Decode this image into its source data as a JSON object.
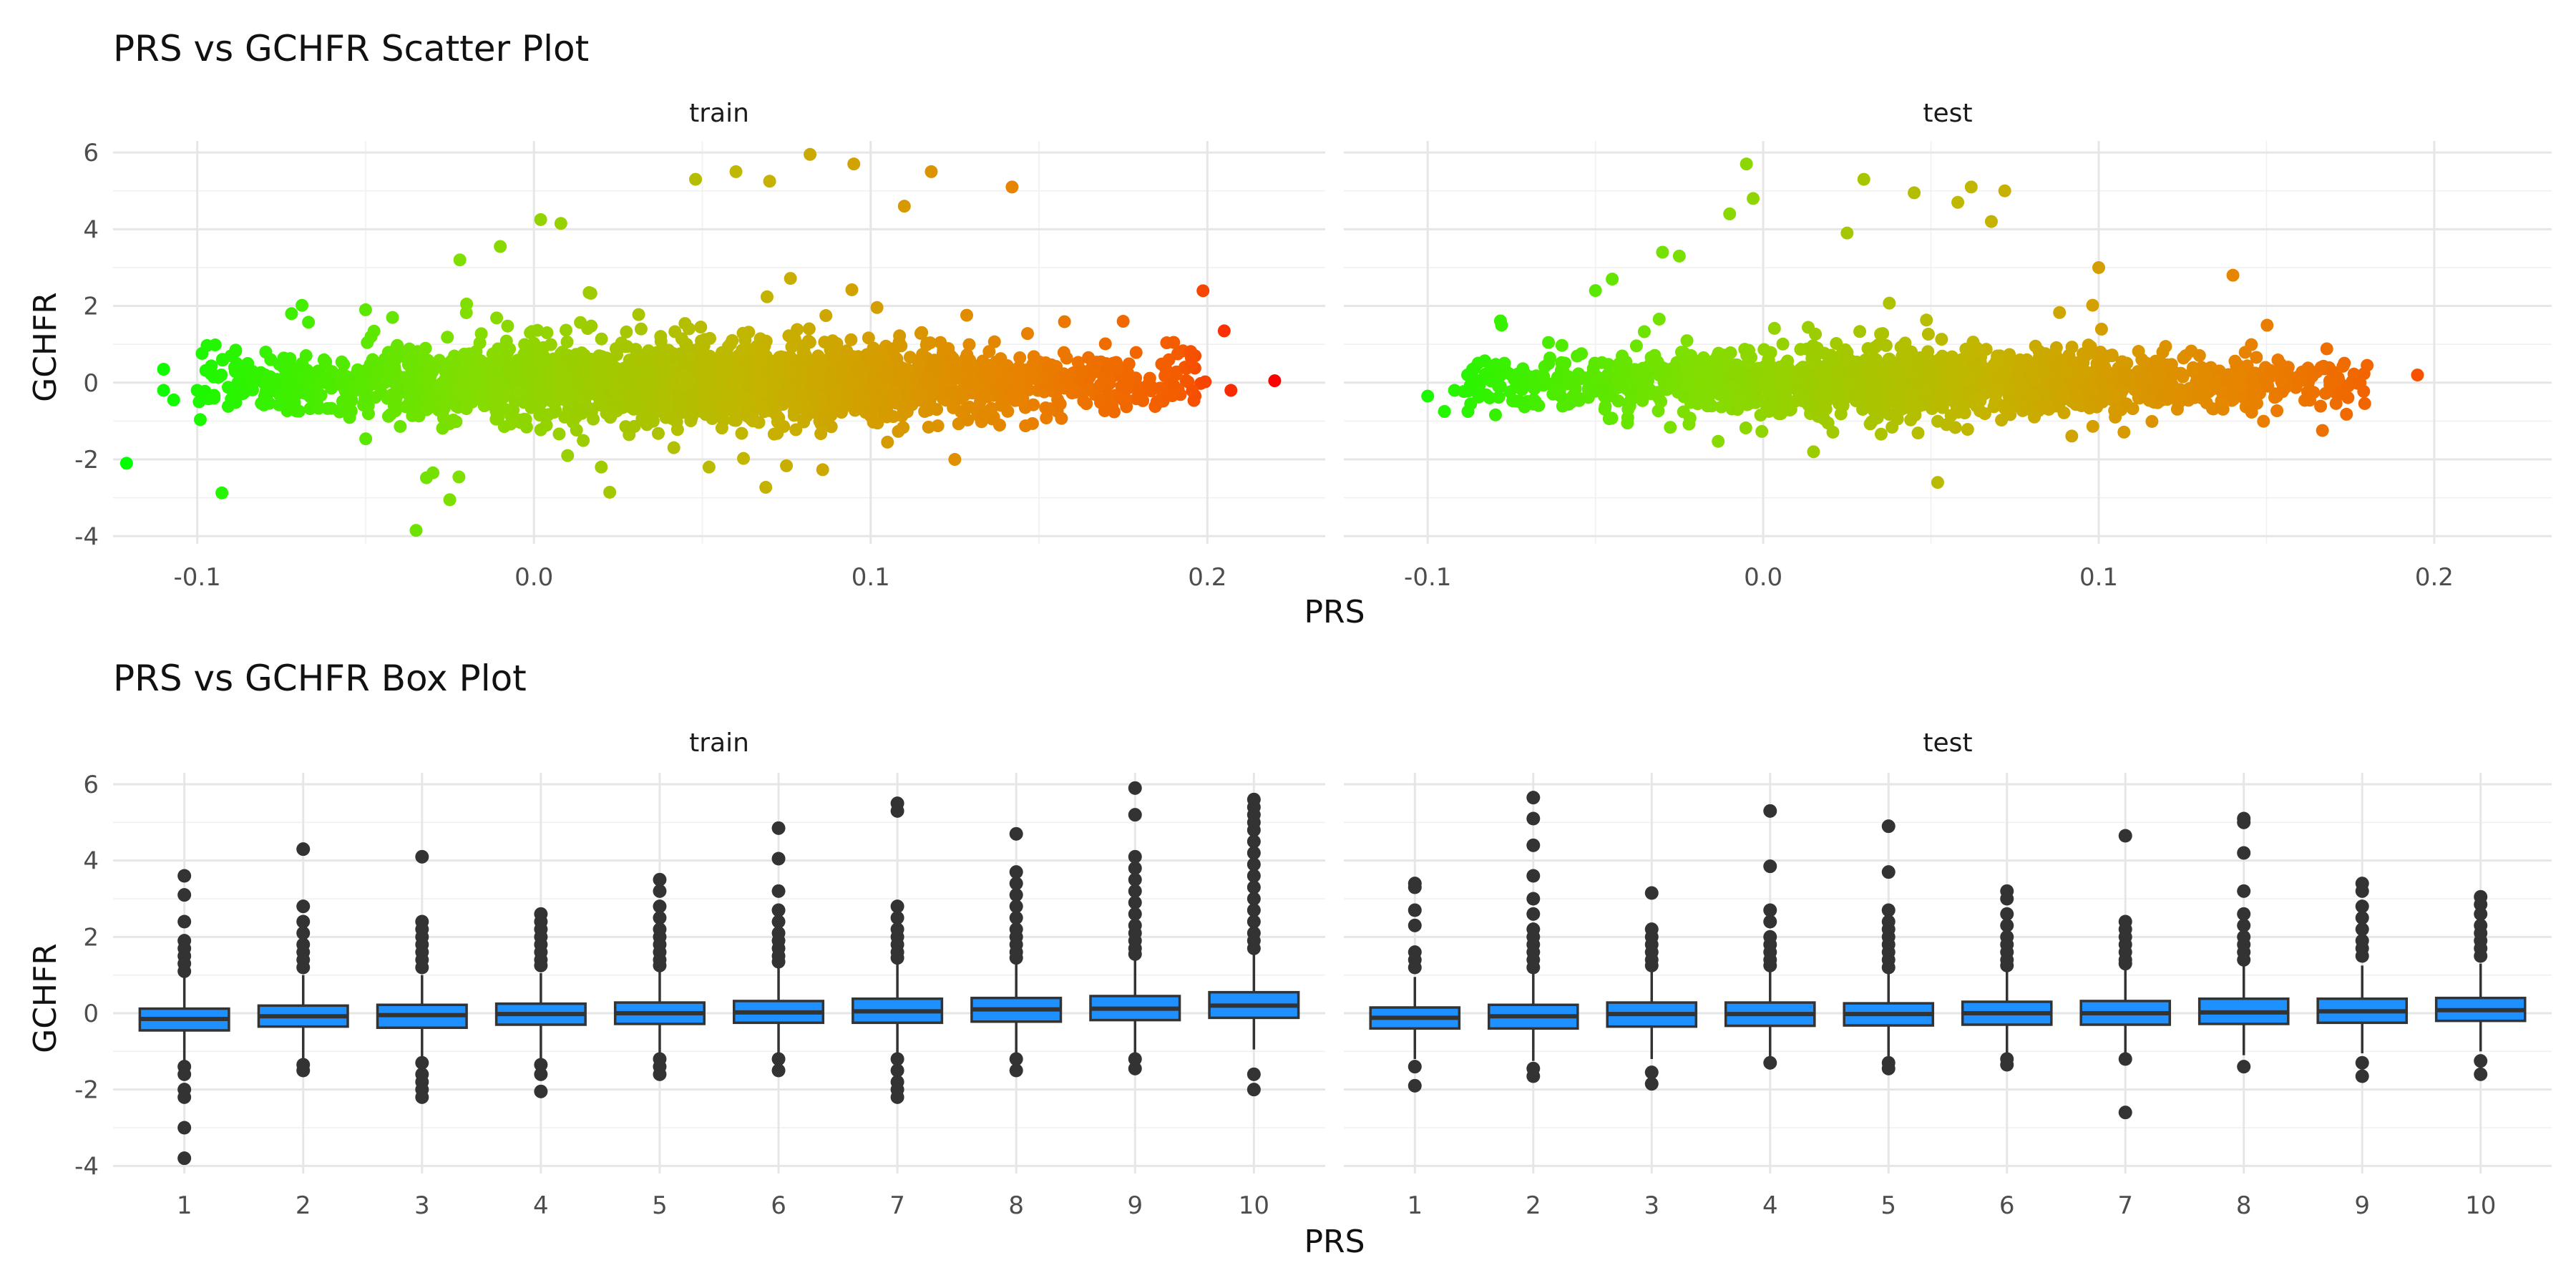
{
  "chart_data": [
    {
      "type": "scatter",
      "title": "PRS vs GCHFR Scatter Plot",
      "xlabel": "PRS",
      "ylabel": "GCHFR",
      "xlim": [
        -0.125,
        0.235
      ],
      "ylim": [
        -4.2,
        6.3
      ],
      "x_ticks": [
        -0.1,
        0.0,
        0.1,
        0.2
      ],
      "x_tick_labels": [
        "-0.1",
        "0.0",
        "0.1",
        "0.2"
      ],
      "y_ticks": [
        -4,
        -2,
        0,
        2,
        4,
        6
      ],
      "y_tick_labels": [
        "-4",
        "-2",
        "0",
        "2",
        "4",
        "6"
      ],
      "grid": true,
      "legend": "none",
      "color_gradient": {
        "low": "#00ff00",
        "high": "#ff0000",
        "by": "PRS"
      },
      "facets": [
        {
          "label": "train",
          "points": [
            [
              -0.121,
              -2.1
            ],
            [
              -0.11,
              0.35
            ],
            [
              -0.11,
              -0.2
            ],
            [
              -0.107,
              -0.45
            ],
            [
              -0.1,
              -0.2
            ],
            [
              -0.095,
              -0.4
            ],
            [
              -0.09,
              0.7
            ],
            [
              -0.085,
              0.5
            ],
            [
              -0.072,
              1.8
            ],
            [
              -0.05,
              1.9
            ],
            [
              -0.042,
              1.7
            ],
            [
              -0.03,
              -2.35
            ],
            [
              -0.025,
              -3.05
            ],
            [
              -0.035,
              -3.85
            ],
            [
              -0.02,
              2.05
            ],
            [
              -0.022,
              3.2
            ],
            [
              -0.01,
              3.55
            ],
            [
              0.002,
              4.25
            ],
            [
              0.008,
              4.15
            ],
            [
              0.01,
              -1.9
            ],
            [
              0.02,
              -2.2
            ],
            [
              0.048,
              5.3
            ],
            [
              0.052,
              -2.2
            ],
            [
              0.06,
              5.5
            ],
            [
              0.07,
              5.25
            ],
            [
              0.082,
              5.95
            ],
            [
              0.095,
              5.7
            ],
            [
              0.11,
              4.6
            ],
            [
              0.118,
              5.5
            ],
            [
              0.142,
              5.1
            ],
            [
              0.105,
              -1.55
            ],
            [
              0.125,
              -2.0
            ],
            [
              0.19,
              1.05
            ],
            [
              0.205,
              1.35
            ],
            [
              0.207,
              -0.2
            ],
            [
              0.22,
              0.05
            ],
            [
              0.175,
              1.6
            ],
            [
              0.185,
              -0.5
            ]
          ],
          "cloud": {
            "x_range": [
              -0.09,
              0.19
            ],
            "y_center": 0.0,
            "y_spread": 1.2
          }
        },
        {
          "label": "test",
          "points": [
            [
              -0.1,
              -0.35
            ],
            [
              -0.095,
              -0.75
            ],
            [
              -0.088,
              -0.75
            ],
            [
              -0.092,
              -0.2
            ],
            [
              -0.078,
              1.5
            ],
            [
              -0.05,
              2.4
            ],
            [
              -0.045,
              2.7
            ],
            [
              -0.03,
              3.4
            ],
            [
              -0.025,
              3.3
            ],
            [
              -0.01,
              4.4
            ],
            [
              -0.005,
              5.7
            ],
            [
              -0.003,
              4.8
            ],
            [
              0.015,
              -1.8
            ],
            [
              0.025,
              3.9
            ],
            [
              0.03,
              5.3
            ],
            [
              0.045,
              4.95
            ],
            [
              0.052,
              -2.6
            ],
            [
              0.058,
              4.7
            ],
            [
              0.062,
              5.1
            ],
            [
              0.068,
              4.2
            ],
            [
              0.072,
              5.0
            ],
            [
              0.1,
              3.0
            ],
            [
              0.14,
              2.8
            ],
            [
              0.18,
              0.45
            ],
            [
              0.195,
              0.2
            ],
            [
              0.172,
              -0.3
            ]
          ],
          "cloud": {
            "x_range": [
              -0.08,
              0.17
            ],
            "y_center": 0.0,
            "y_spread": 1.0
          }
        }
      ]
    },
    {
      "type": "box",
      "title": "PRS vs GCHFR Box Plot",
      "xlabel": "PRS",
      "ylabel": "GCHFR",
      "categories": [
        "1",
        "2",
        "3",
        "4",
        "5",
        "6",
        "7",
        "8",
        "9",
        "10"
      ],
      "ylim": [
        -4.2,
        6.3
      ],
      "y_ticks": [
        -4,
        -2,
        0,
        2,
        4,
        6
      ],
      "y_tick_labels": [
        "-4",
        "-2",
        "0",
        "2",
        "4",
        "6"
      ],
      "fill_color": "#1e90ff",
      "grid": true,
      "facets": [
        {
          "label": "train",
          "boxes": [
            {
              "q1": -0.45,
              "median": -0.15,
              "q3": 0.12,
              "whisker_low": -1.25,
              "whisker_high": 0.95,
              "outliers": [
                3.6,
                3.1,
                2.4,
                1.9,
                1.7,
                1.5,
                1.3,
                1.1,
                -1.4,
                -1.6,
                -2.0,
                -2.2,
                -3.0,
                -3.8
              ]
            },
            {
              "q1": -0.35,
              "median": -0.08,
              "q3": 0.2,
              "whisker_low": -1.2,
              "whisker_high": 1.0,
              "outliers": [
                4.3,
                2.8,
                2.4,
                2.1,
                1.8,
                1.6,
                1.4,
                1.2,
                -1.35,
                -1.5
              ]
            },
            {
              "q1": -0.38,
              "median": -0.05,
              "q3": 0.22,
              "whisker_low": -1.2,
              "whisker_high": 1.0,
              "outliers": [
                4.1,
                2.4,
                2.2,
                2.0,
                1.8,
                1.6,
                1.4,
                1.2,
                -1.3,
                -1.6,
                -1.8,
                -2.0,
                -2.2
              ]
            },
            {
              "q1": -0.3,
              "median": -0.02,
              "q3": 0.25,
              "whisker_low": -1.2,
              "whisker_high": 1.05,
              "outliers": [
                2.6,
                2.4,
                2.2,
                2.0,
                1.8,
                1.6,
                1.4,
                1.25,
                -1.35,
                -1.6,
                -2.05
              ]
            },
            {
              "q1": -0.28,
              "median": 0.0,
              "q3": 0.28,
              "whisker_low": -1.1,
              "whisker_high": 1.1,
              "outliers": [
                3.5,
                3.2,
                2.8,
                2.5,
                2.2,
                2.0,
                1.8,
                1.6,
                1.4,
                1.25,
                -1.2,
                -1.4,
                -1.6
              ]
            },
            {
              "q1": -0.25,
              "median": 0.02,
              "q3": 0.32,
              "whisker_low": -1.1,
              "whisker_high": 1.2,
              "outliers": [
                4.85,
                4.05,
                3.2,
                2.7,
                2.4,
                2.1,
                1.9,
                1.7,
                1.5,
                1.35,
                -1.2,
                -1.5
              ]
            },
            {
              "q1": -0.25,
              "median": 0.05,
              "q3": 0.38,
              "whisker_low": -1.1,
              "whisker_high": 1.3,
              "outliers": [
                5.5,
                5.3,
                2.8,
                2.5,
                2.2,
                2.0,
                1.8,
                1.6,
                1.45,
                -1.2,
                -1.5,
                -1.8,
                -2.0,
                -2.2
              ]
            },
            {
              "q1": -0.22,
              "median": 0.1,
              "q3": 0.4,
              "whisker_low": -1.1,
              "whisker_high": 1.3,
              "outliers": [
                4.7,
                3.7,
                3.4,
                3.1,
                2.8,
                2.5,
                2.2,
                2.0,
                1.8,
                1.6,
                1.45,
                -1.2,
                -1.5
              ]
            },
            {
              "q1": -0.18,
              "median": 0.12,
              "q3": 0.45,
              "whisker_low": -1.05,
              "whisker_high": 1.4,
              "outliers": [
                5.9,
                5.2,
                4.1,
                3.8,
                3.5,
                3.2,
                2.9,
                2.6,
                2.3,
                2.1,
                1.9,
                1.7,
                1.55,
                -1.2,
                -1.45
              ]
            },
            {
              "q1": -0.12,
              "median": 0.2,
              "q3": 0.55,
              "whisker_low": -0.95,
              "whisker_high": 1.55,
              "outliers": [
                5.6,
                5.4,
                5.2,
                5.0,
                4.8,
                4.5,
                4.2,
                3.9,
                3.6,
                3.3,
                3.0,
                2.7,
                2.4,
                2.1,
                1.9,
                1.7,
                -1.6,
                -2.0
              ]
            }
          ]
        },
        {
          "label": "test",
          "boxes": [
            {
              "q1": -0.4,
              "median": -0.12,
              "q3": 0.15,
              "whisker_low": -1.2,
              "whisker_high": 0.95,
              "outliers": [
                3.4,
                3.3,
                2.7,
                2.3,
                1.6,
                1.4,
                1.2,
                -1.4,
                -1.9
              ]
            },
            {
              "q1": -0.4,
              "median": -0.08,
              "q3": 0.22,
              "whisker_low": -1.25,
              "whisker_high": 1.05,
              "outliers": [
                5.65,
                5.1,
                4.4,
                3.6,
                3.0,
                2.6,
                2.2,
                2.0,
                1.8,
                1.6,
                1.4,
                1.2,
                -1.45,
                -1.65
              ]
            },
            {
              "q1": -0.35,
              "median": -0.02,
              "q3": 0.28,
              "whisker_low": -1.2,
              "whisker_high": 1.1,
              "outliers": [
                3.15,
                2.2,
                2.0,
                1.8,
                1.6,
                1.4,
                1.25,
                -1.55,
                -1.85
              ]
            },
            {
              "q1": -0.33,
              "median": -0.02,
              "q3": 0.28,
              "whisker_low": -1.2,
              "whisker_high": 1.1,
              "outliers": [
                5.3,
                3.85,
                2.7,
                2.4,
                2.0,
                1.8,
                1.6,
                1.4,
                1.25,
                -1.3
              ]
            },
            {
              "q1": -0.32,
              "median": -0.02,
              "q3": 0.26,
              "whisker_low": -1.15,
              "whisker_high": 1.05,
              "outliers": [
                4.9,
                3.7,
                2.7,
                2.4,
                2.2,
                2.0,
                1.8,
                1.6,
                1.4,
                1.2,
                -1.3,
                -1.45
              ]
            },
            {
              "q1": -0.3,
              "median": 0.0,
              "q3": 0.3,
              "whisker_low": -1.1,
              "whisker_high": 1.1,
              "outliers": [
                3.2,
                3.0,
                2.6,
                2.3,
                2.0,
                1.8,
                1.6,
                1.4,
                1.25,
                -1.2,
                -1.35
              ]
            },
            {
              "q1": -0.3,
              "median": 0.0,
              "q3": 0.32,
              "whisker_low": -1.1,
              "whisker_high": 1.15,
              "outliers": [
                4.65,
                2.4,
                2.2,
                2.0,
                1.8,
                1.6,
                1.4,
                1.3,
                -1.2,
                -2.6
              ]
            },
            {
              "q1": -0.28,
              "median": 0.02,
              "q3": 0.38,
              "whisker_low": -1.1,
              "whisker_high": 1.25,
              "outliers": [
                5.1,
                5.0,
                4.2,
                3.2,
                2.6,
                2.3,
                2.0,
                1.8,
                1.6,
                1.4,
                -1.4
              ]
            },
            {
              "q1": -0.25,
              "median": 0.05,
              "q3": 0.38,
              "whisker_low": -1.05,
              "whisker_high": 1.25,
              "outliers": [
                3.4,
                3.2,
                2.8,
                2.5,
                2.2,
                1.9,
                1.7,
                1.5,
                -1.3,
                -1.65
              ]
            },
            {
              "q1": -0.2,
              "median": 0.08,
              "q3": 0.4,
              "whisker_low": -1.0,
              "whisker_high": 1.3,
              "outliers": [
                3.05,
                2.85,
                2.6,
                2.3,
                2.1,
                1.9,
                1.7,
                1.5,
                -1.25,
                -1.6
              ]
            }
          ]
        }
      ]
    }
  ]
}
